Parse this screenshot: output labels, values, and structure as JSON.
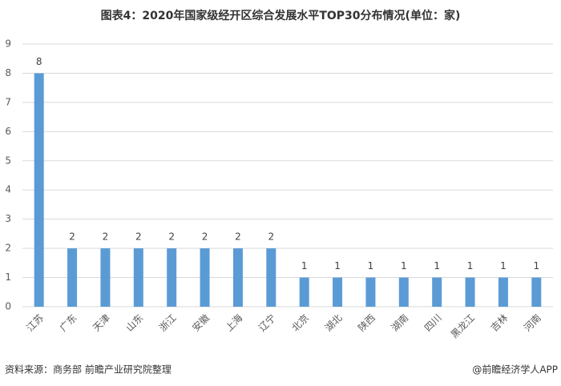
{
  "chart_data": {
    "type": "bar",
    "title": "图表4：2020年国家级经开区综合发展水平TOP30分布情况(单位：家)",
    "categories": [
      "江苏",
      "广东",
      "天津",
      "山东",
      "浙江",
      "安徽",
      "上海",
      "辽宁",
      "北京",
      "湖北",
      "陕西",
      "湖南",
      "四川",
      "黑龙江",
      "吉林",
      "河南"
    ],
    "values": [
      8,
      2,
      2,
      2,
      2,
      2,
      2,
      2,
      1,
      1,
      1,
      1,
      1,
      1,
      1,
      1
    ],
    "color": "#5b9bd5",
    "ylim": [
      0,
      9
    ],
    "yticks": [
      0,
      1,
      2,
      3,
      4,
      5,
      6,
      7,
      8,
      9
    ],
    "grid": true,
    "source": "资料来源：商务部 前瞻产业研究院整理",
    "credit": "@前瞻经济学人APP"
  }
}
